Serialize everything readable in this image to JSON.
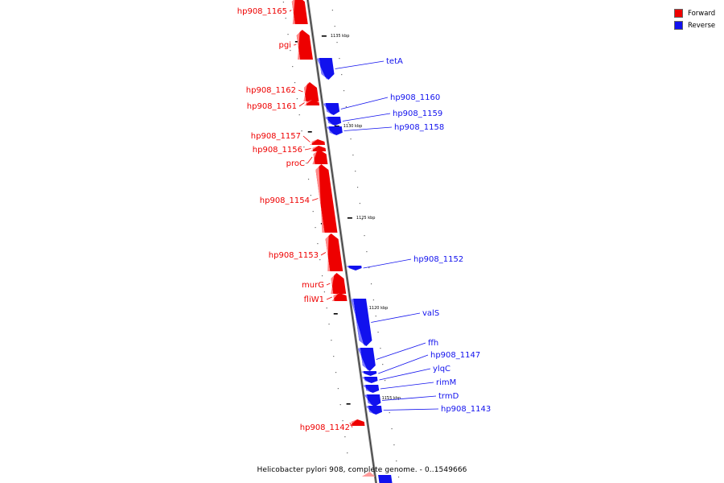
{
  "legend": [
    {
      "label": "Forward",
      "color": "#ee0000"
    },
    {
      "label": "Reverse",
      "color": "#1111ee"
    }
  ],
  "caption": "Helicobacter pylori 908, complete genome. - 0..1549666",
  "ticks": [
    "1135 kbp",
    "1130 kbp",
    "1125 kbp",
    "1120 kbp",
    "1115 kbp"
  ],
  "genes": [
    {
      "name": "hp908_1165",
      "strand": "forward"
    },
    {
      "name": "pgi",
      "strand": "forward"
    },
    {
      "name": "tetA",
      "strand": "reverse"
    },
    {
      "name": "hp908_1162",
      "strand": "forward"
    },
    {
      "name": "hp908_1161",
      "strand": "forward"
    },
    {
      "name": "hp908_1160",
      "strand": "reverse"
    },
    {
      "name": "hp908_1159",
      "strand": "reverse"
    },
    {
      "name": "hp908_1158",
      "strand": "reverse"
    },
    {
      "name": "hp908_1157",
      "strand": "forward"
    },
    {
      "name": "hp908_1156",
      "strand": "forward"
    },
    {
      "name": "proC",
      "strand": "forward"
    },
    {
      "name": "hp908_1154",
      "strand": "forward"
    },
    {
      "name": "hp908_1153",
      "strand": "forward"
    },
    {
      "name": "hp908_1152",
      "strand": "reverse"
    },
    {
      "name": "murG",
      "strand": "forward"
    },
    {
      "name": "fliW1",
      "strand": "forward"
    },
    {
      "name": "valS",
      "strand": "reverse"
    },
    {
      "name": "ffh",
      "strand": "reverse"
    },
    {
      "name": "hp908_1147",
      "strand": "reverse"
    },
    {
      "name": "ylqC",
      "strand": "reverse"
    },
    {
      "name": "rimM",
      "strand": "reverse"
    },
    {
      "name": "trmD",
      "strand": "reverse"
    },
    {
      "name": "hp908_1143",
      "strand": "reverse"
    },
    {
      "name": "hp908_1142",
      "strand": "forward"
    }
  ]
}
